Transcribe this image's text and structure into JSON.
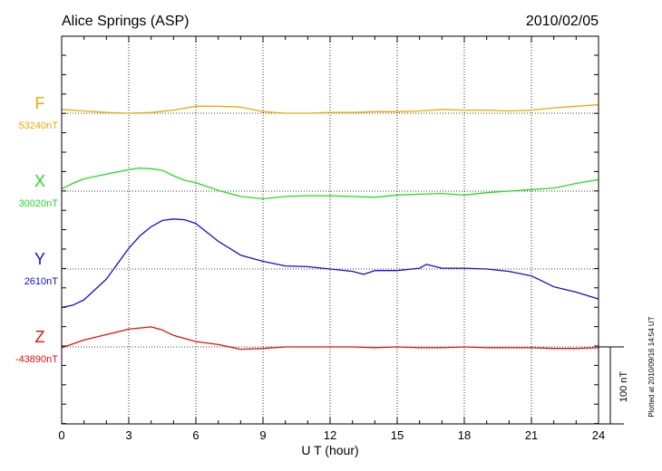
{
  "chart_data": {
    "type": "line",
    "title": "Alice Springs (ASP)",
    "date": "2010/02/05",
    "xlabel": "U T (hour)",
    "x_ticks": [
      "0",
      "3",
      "6",
      "9",
      "12",
      "15",
      "18",
      "21",
      "24"
    ],
    "xlim": [
      0,
      24
    ],
    "scale_bar_label": "100 nT",
    "scale_bar_nT": 100,
    "plotted_note": "Plotted at 2010/09/16 14:54 UT",
    "grid": true,
    "series": [
      {
        "name": "F",
        "baseline_label": "53240nT",
        "baseline_nT": 53240,
        "color": "#f0a800",
        "x": [
          0,
          1,
          2,
          3,
          4,
          5,
          6,
          7,
          8,
          9,
          10,
          11,
          12,
          13,
          14,
          15,
          16,
          17,
          18,
          19,
          20,
          21,
          22,
          23,
          24
        ],
        "y": [
          53245,
          53243,
          53241,
          53240,
          53241,
          53244,
          53249,
          53249,
          53248,
          53242,
          53240,
          53240,
          53241,
          53241,
          53242,
          53242,
          53243,
          53245,
          53244,
          53244,
          53243,
          53244,
          53247,
          53249,
          53251
        ]
      },
      {
        "name": "X",
        "baseline_label": "30020nT",
        "baseline_nT": 30020,
        "color": "#22dd22",
        "x": [
          0,
          0.5,
          1,
          2,
          3,
          3.5,
          4,
          4.5,
          5,
          5.5,
          6,
          7,
          8,
          9,
          10,
          11,
          12,
          13,
          14,
          15,
          16,
          17,
          18,
          19,
          20,
          21,
          22,
          23,
          24
        ],
        "y": [
          30023,
          30030,
          30036,
          30042,
          30048,
          30050,
          30049,
          30047,
          30040,
          30034,
          30031,
          30021,
          30013,
          30010,
          30013,
          30014,
          30014,
          30013,
          30012,
          30015,
          30016,
          30017,
          30015,
          30018,
          30020,
          30022,
          30024,
          30030,
          30035
        ]
      },
      {
        "name": "Y",
        "baseline_label": "2610nT",
        "baseline_nT": 2610,
        "color": "#1010cc",
        "x": [
          0,
          0.5,
          1,
          2,
          3,
          3.5,
          4,
          4.5,
          5,
          5.5,
          6,
          7,
          8,
          9,
          10,
          11,
          12,
          13,
          13.5,
          14,
          15,
          16,
          16.3,
          17,
          18,
          19,
          20,
          21,
          22,
          23,
          24
        ],
        "y": [
          2560,
          2563,
          2570,
          2597,
          2637,
          2653,
          2665,
          2673,
          2675,
          2674,
          2669,
          2646,
          2628,
          2620,
          2614,
          2613,
          2610,
          2607,
          2603,
          2608,
          2608,
          2611,
          2616,
          2611,
          2611,
          2610,
          2607,
          2601,
          2587,
          2580,
          2571
        ]
      },
      {
        "name": "Z",
        "baseline_label": "-43890nT",
        "baseline_nT": -43890,
        "color": "#dd1111",
        "x": [
          0,
          1,
          2,
          3,
          4,
          4.5,
          5,
          6,
          7,
          8,
          9,
          10,
          11,
          12,
          13,
          14,
          15,
          16,
          17,
          18,
          19,
          20,
          21,
          22,
          23,
          24
        ],
        "y": [
          -43891,
          -43881,
          -43874,
          -43867,
          -43864,
          -43868,
          -43875,
          -43883,
          -43887,
          -43893,
          -43892,
          -43890,
          -43890,
          -43890,
          -43890,
          -43891,
          -43890,
          -43891,
          -43891,
          -43890,
          -43891,
          -43891,
          -43891,
          -43892,
          -43892,
          -43891
        ]
      }
    ]
  }
}
